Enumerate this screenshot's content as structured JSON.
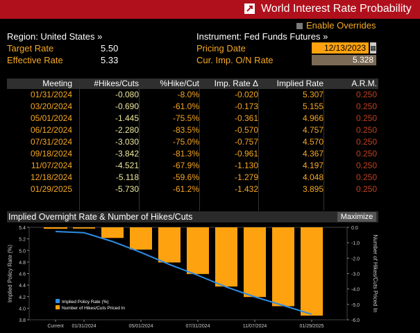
{
  "window": {
    "title": "World Interest Rate Probability"
  },
  "header": {
    "enable_overrides": "Enable Overrides",
    "region": "Region: United States »",
    "instrument": "Instrument: Fed Funds Futures »",
    "target_rate_label": "Target Rate",
    "target_rate_value": "5.50",
    "effective_rate_label": "Effective Rate",
    "effective_rate_value": "5.33",
    "pricing_date_label": "Pricing Date",
    "pricing_date_value": "12/13/2023",
    "cur_imp_label": "Cur. Imp. O/N Rate",
    "cur_imp_value": "5.328"
  },
  "table": {
    "headers": [
      "Meeting",
      "#Hikes/Cuts",
      "%Hike/Cut",
      "Imp. Rate Δ",
      "Implied Rate",
      "A.R.M."
    ],
    "rows": [
      [
        "01/31/2024",
        "-0.080",
        "-8.0%",
        "-0.020",
        "5.307",
        "0.250"
      ],
      [
        "03/20/2024",
        "-0.690",
        "-61.0%",
        "-0.173",
        "5.155",
        "0.250"
      ],
      [
        "05/01/2024",
        "-1.445",
        "-75.5%",
        "-0.361",
        "4.966",
        "0.250"
      ],
      [
        "06/12/2024",
        "-2.280",
        "-83.5%",
        "-0.570",
        "4.757",
        "0.250"
      ],
      [
        "07/31/2024",
        "-3.030",
        "-75.0%",
        "-0.757",
        "4.570",
        "0.250"
      ],
      [
        "09/18/2024",
        "-3.842",
        "-81.3%",
        "-0.961",
        "4.367",
        "0.250"
      ],
      [
        "11/07/2024",
        "-4.521",
        "-67.9%",
        "-1.130",
        "4.197",
        "0.250"
      ],
      [
        "12/18/2024",
        "-5.118",
        "-59.6%",
        "-1.279",
        "4.048",
        "0.250"
      ],
      [
        "01/29/2025",
        "-5.730",
        "-61.2%",
        "-1.432",
        "3.895",
        "0.250"
      ]
    ]
  },
  "chart_section": {
    "title": "Implied Overnight Rate & Number of Hikes/Cuts",
    "maximize_label": "Maximize"
  },
  "chart_data": {
    "type": "bar",
    "categories": [
      "Current",
      "01/31/2024",
      "03/20/2024",
      "05/01/2024",
      "06/12/2024",
      "07/31/2024",
      "09/18/2024",
      "11/07/2024",
      "12/18/2024",
      "01/29/2025"
    ],
    "x_tick_labels": [
      "Current",
      "01/31/2024",
      "05/01/2024",
      "07/31/2024",
      "11/07/2024",
      "01/29/2025"
    ],
    "series": [
      {
        "name": "Implied Policy Rate (%)",
        "type": "line",
        "axis": "left",
        "color": "#2f8de4",
        "values": [
          5.328,
          5.307,
          5.155,
          4.966,
          4.757,
          4.57,
          4.367,
          4.197,
          4.048,
          3.895
        ]
      },
      {
        "name": "Number of Hikes/Cuts Priced In",
        "type": "bar",
        "axis": "right",
        "color": "#ffa20f",
        "values": [
          0,
          -0.08,
          -0.69,
          -1.445,
          -2.28,
          -3.03,
          -3.842,
          -4.521,
          -5.118,
          -5.73
        ]
      }
    ],
    "ylabel": "Implied Policy Rate (%)",
    "y2label": "Number of Hikes/Cuts Priced In",
    "ylim": [
      3.8,
      5.4
    ],
    "yticks": [
      "5.4",
      "5.2",
      "5.0",
      "4.8",
      "4.6",
      "4.4",
      "4.2",
      "4.0",
      "3.8"
    ],
    "y2lim": [
      -6.0,
      0.0
    ],
    "y2ticks": [
      "0.0",
      "-1.0",
      "-2.0",
      "-3.0",
      "-4.0",
      "-5.0",
      "-6.0"
    ],
    "legend_position": "bottom-left",
    "grid": false
  }
}
